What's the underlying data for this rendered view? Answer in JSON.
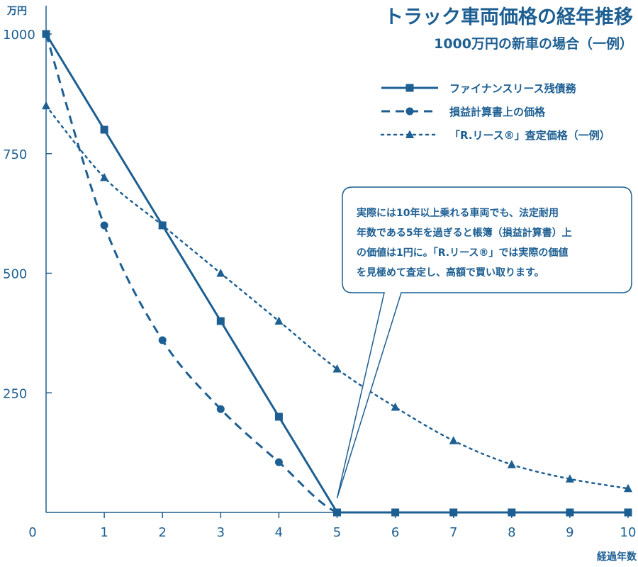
{
  "chart_data": {
    "type": "line",
    "title": "トラック車両価格の経年推移",
    "subtitle": "1000万円の新車の場合（一例）",
    "ylabel": "万円",
    "xlabel": "経過年数",
    "x": [
      0,
      1,
      2,
      3,
      4,
      5,
      6,
      7,
      8,
      9,
      10
    ],
    "yticks": [
      250,
      500,
      750,
      1000
    ],
    "xlim": [
      0,
      10
    ],
    "ylim": [
      0,
      1000
    ],
    "grid": false,
    "legend_position": "top-right",
    "series": [
      {
        "name": "ファイナンスリース残債務",
        "style": "solid",
        "marker": "square",
        "values": [
          1000,
          800,
          600,
          400,
          200,
          0,
          0,
          0,
          0,
          0,
          0
        ]
      },
      {
        "name": "損益計算書上の価格",
        "style": "dashed",
        "marker": "circle",
        "values": [
          1000,
          600,
          360,
          216,
          105,
          0,
          0,
          0,
          0,
          0,
          0
        ]
      },
      {
        "name": "「R.リース®」査定価格（一例）",
        "style": "dotted",
        "marker": "triangle",
        "values": [
          850,
          700,
          600,
          500,
          400,
          300,
          220,
          150,
          100,
          70,
          50
        ]
      }
    ],
    "annotation": {
      "lines": [
        "実際には10年以上乗れる車両でも、法定耐用",
        "年数である5年を過ぎると帳簿（損益計算書）上",
        "の価値は1円に。「R.リース®」では実際の価値",
        "を見極めて査定し、高額で買い取ります。"
      ],
      "points_to": {
        "x": 5,
        "y": 0
      }
    }
  },
  "colors": {
    "primary": "#1d5f92",
    "background": "#ffffff"
  }
}
